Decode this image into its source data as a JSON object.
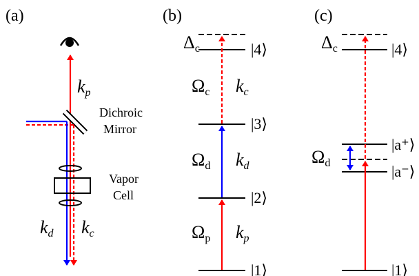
{
  "panels": {
    "a": "(a)",
    "b": "(b)",
    "c": "(c)"
  },
  "setup": {
    "kp": {
      "main": "k",
      "sub": "p"
    },
    "kd": {
      "main": "k",
      "sub": "d"
    },
    "kc": {
      "main": "k",
      "sub": "c"
    },
    "mirror_line1": "Dichroic",
    "mirror_line2": "Mirror",
    "cell_line1": "Vapor",
    "cell_line2": "Cell"
  },
  "level_b": {
    "delta": {
      "main": "Δ",
      "sub": "c"
    },
    "ket4": "|4⟩",
    "ket3": "|3⟩",
    "ket2": "|2⟩",
    "ket1": "|1⟩",
    "omega_c": {
      "main": "Ω",
      "sub": "c"
    },
    "k_c": {
      "main": "k",
      "sub": "c"
    },
    "omega_d": {
      "main": "Ω",
      "sub": "d"
    },
    "k_d": {
      "main": "k",
      "sub": "d"
    },
    "omega_p": {
      "main": "Ω",
      "sub": "p"
    },
    "k_p": {
      "main": "k",
      "sub": "p"
    }
  },
  "level_c": {
    "delta": {
      "main": "Δ",
      "sub": "c"
    },
    "ket4": "|4⟩",
    "ket_aplus": "|a⁺⟩",
    "ket_aminus": "|a⁻⟩",
    "ket1": "|1⟩",
    "omega_d": {
      "main": "Ω",
      "sub": "d"
    }
  },
  "colors": {
    "probe": "#ff0000",
    "dressing": "#0000ff",
    "level": "#000000"
  }
}
